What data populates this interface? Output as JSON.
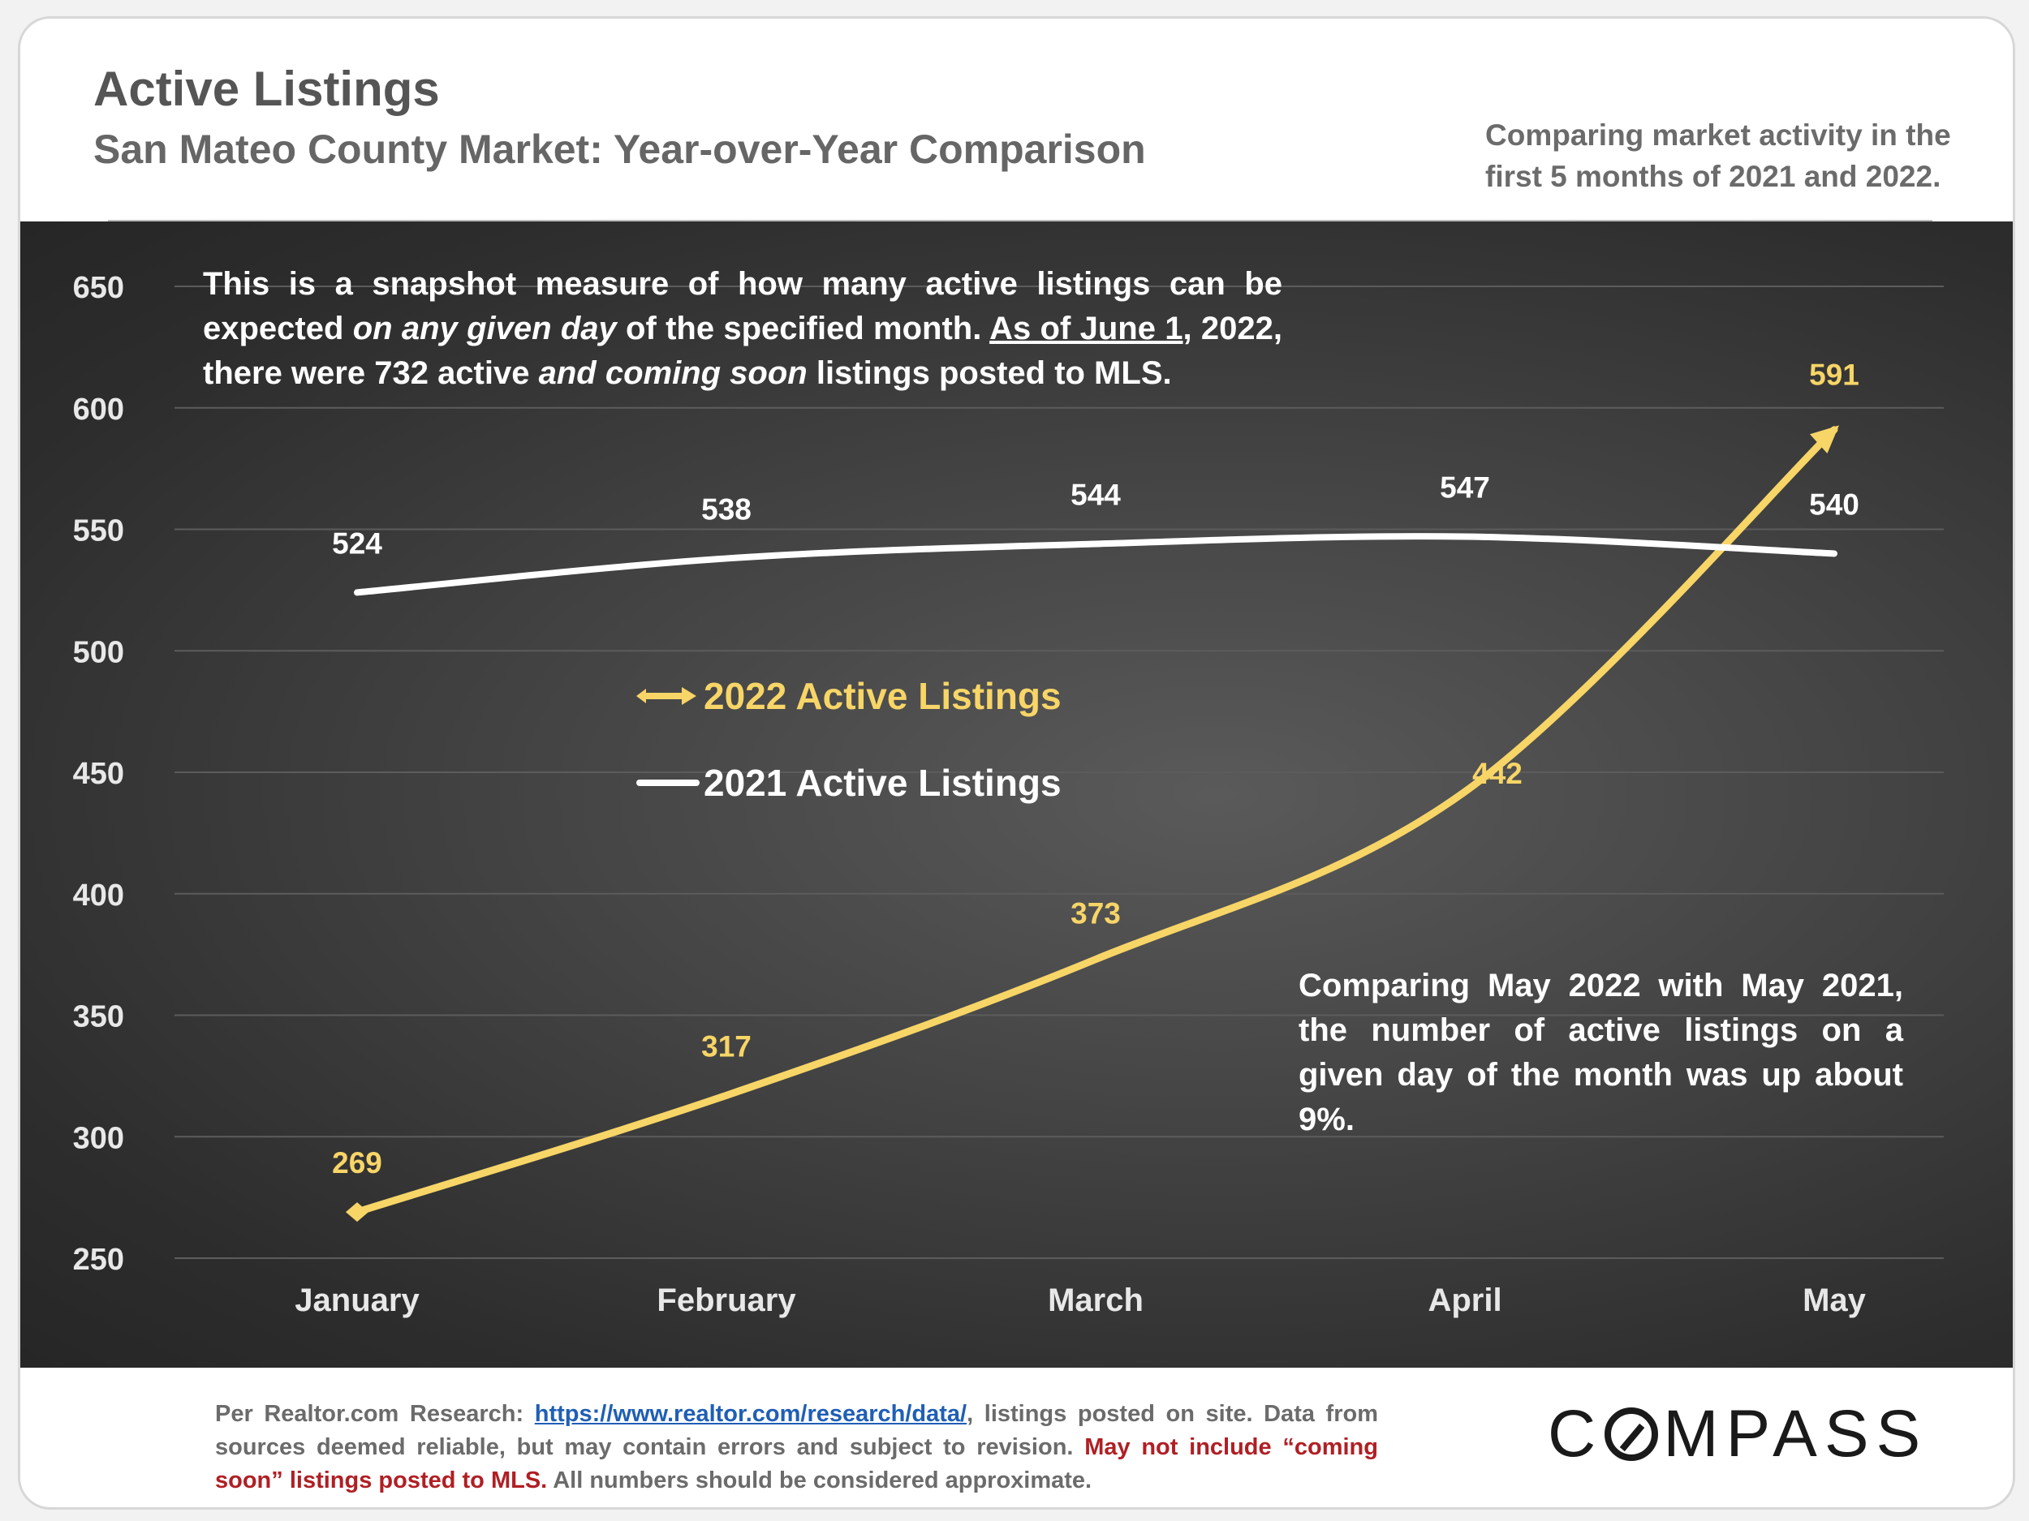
{
  "header": {
    "title": "Active Listings",
    "subtitle": "San Mateo County Market: Year-over-Year Comparison",
    "note": "Comparing market activity in the first 5 months of 2021 and 2022."
  },
  "annotations": {
    "top_prefix": "This is a snapshot measure of how many active listings can be expected ",
    "top_italic1": "on any given day",
    "top_mid": " of the specified month. ",
    "top_underlined": "As of June 1",
    "top_mid2": ", 2022, there were 732 active ",
    "top_italic2": "and coming soon",
    "top_suffix": " listings posted to MLS.",
    "bottom": "Comparing May 2022 with May 2021, the number of active listings on a given day of the month was up about 9%."
  },
  "legend": {
    "series_2022": "2022 Active Listings",
    "series_2021": "2021 Active Listings"
  },
  "footer": {
    "prefix": "Per Realtor.com Research: ",
    "link": "https://www.realtor.com/research/data/",
    "after_link": ", listings posted on site. Data from sources deemed reliable, but may contain errors and subject to revision. ",
    "red": "May not include “coming soon” listings posted to MLS.",
    "suffix": " All numbers should be considered approximate.",
    "logo": "COMPASS"
  },
  "colors": {
    "series_2022": "#f7d567",
    "series_2021": "#ffffff",
    "footer_link": "#1f5fb5",
    "footer_red": "#b01f24"
  },
  "chart_data": {
    "type": "line",
    "categories": [
      "January",
      "February",
      "March",
      "April",
      "May"
    ],
    "series": [
      {
        "name": "2022 Active Listings",
        "values": [
          269,
          317,
          373,
          442,
          591
        ],
        "color": "#f7d567"
      },
      {
        "name": "2021 Active Listings",
        "values": [
          524,
          538,
          544,
          547,
          540
        ],
        "color": "#ffffff"
      }
    ],
    "ylim": [
      250,
      650
    ],
    "yticks": [
      250,
      300,
      350,
      400,
      450,
      500,
      550,
      600,
      650
    ],
    "grid": true,
    "legend_position": "center-left"
  }
}
